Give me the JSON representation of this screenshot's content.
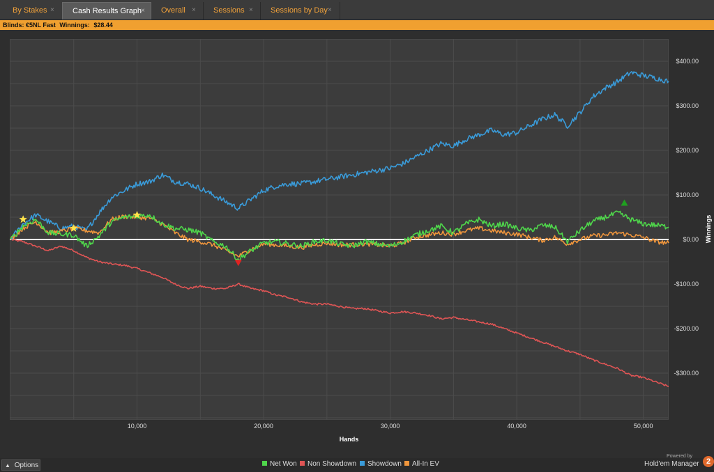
{
  "tabs": [
    {
      "label": "By Stakes",
      "active": false
    },
    {
      "label": "Cash Results Graph",
      "active": true
    },
    {
      "label": "Overall",
      "active": false
    },
    {
      "label": "Sessions",
      "active": false
    },
    {
      "label": "Sessions by Day",
      "active": false
    }
  ],
  "close_glyph": "×",
  "infobar": {
    "blinds": "Blinds: €5NL Fast",
    "winnings_label": "Winnings:",
    "winnings_value": "$28.44"
  },
  "options_label": "Options",
  "branding": {
    "powered_by": "Powered by",
    "product": "Hold'em Manager",
    "logo_text": "2"
  },
  "colors": {
    "accent": "#f0a030",
    "net_won": "#4fd64b",
    "non_showdown": "#e05555",
    "showdown": "#3a9bd9",
    "all_in_ev": "#f0963c",
    "zero_line": "#ffffff"
  },
  "chart_data": {
    "type": "line",
    "xlabel": "Hands",
    "ylabel": "Winnings",
    "xlim": [
      0,
      52000
    ],
    "ylim": [
      -400,
      450
    ],
    "x_ticks": [
      10000,
      20000,
      30000,
      40000,
      50000
    ],
    "x_tick_labels": [
      "10,000",
      "20,000",
      "30,000",
      "40,000",
      "50,000"
    ],
    "y_ticks": [
      400,
      300,
      200,
      100,
      0,
      -100,
      -200,
      -300
    ],
    "y_tick_labels": [
      "$400.00",
      "$300.00",
      "$200.00",
      "$100.00",
      "$0.00",
      "-$100.00",
      "-$200.00",
      "-$300.00"
    ],
    "grid": true,
    "legend_position": "bottom",
    "x": [
      0,
      1000,
      2000,
      3000,
      4000,
      5000,
      6000,
      7000,
      8000,
      9000,
      10000,
      11000,
      12000,
      13000,
      14000,
      15000,
      16000,
      17000,
      18000,
      19000,
      20000,
      21000,
      22000,
      23000,
      24000,
      25000,
      26000,
      27000,
      28000,
      29000,
      30000,
      31000,
      32000,
      33000,
      34000,
      35000,
      36000,
      37000,
      38000,
      39000,
      40000,
      41000,
      42000,
      43000,
      44000,
      45000,
      46000,
      47000,
      48000,
      49000,
      50000,
      51000,
      52000
    ],
    "series": [
      {
        "name": "Net Won",
        "color": "#4fd64b",
        "values": [
          0,
          30,
          45,
          15,
          12,
          10,
          -15,
          8,
          40,
          50,
          52,
          55,
          35,
          25,
          22,
          15,
          -5,
          -15,
          -45,
          -25,
          -8,
          -5,
          -10,
          -15,
          -5,
          -2,
          -10,
          -15,
          -5,
          -10,
          -15,
          -5,
          10,
          20,
          30,
          15,
          35,
          45,
          30,
          35,
          25,
          20,
          32,
          28,
          -5,
          20,
          40,
          50,
          60,
          45,
          35,
          32,
          28
        ]
      },
      {
        "name": "Non Showdown",
        "color": "#e05555",
        "values": [
          0,
          -5,
          -15,
          -25,
          -15,
          -25,
          -40,
          -50,
          -55,
          -58,
          -65,
          -75,
          -85,
          -100,
          -110,
          -105,
          -110,
          -110,
          -100,
          -110,
          -115,
          -125,
          -130,
          -140,
          -145,
          -145,
          -150,
          -155,
          -155,
          -160,
          -165,
          -162,
          -165,
          -170,
          -178,
          -175,
          -180,
          -185,
          -190,
          -200,
          -210,
          -220,
          -230,
          -240,
          -250,
          -258,
          -270,
          -280,
          -290,
          -305,
          -310,
          -320,
          -330
        ]
      },
      {
        "name": "Showdown",
        "color": "#3a9bd9",
        "values": [
          0,
          35,
          55,
          40,
          25,
          30,
          20,
          60,
          95,
          110,
          125,
          130,
          145,
          130,
          125,
          115,
          100,
          85,
          70,
          90,
          110,
          120,
          125,
          125,
          130,
          135,
          140,
          145,
          150,
          155,
          160,
          170,
          185,
          200,
          215,
          210,
          225,
          235,
          245,
          235,
          240,
          255,
          270,
          280,
          255,
          285,
          320,
          340,
          355,
          375,
          368,
          362,
          355
        ]
      },
      {
        "name": "All-In EV",
        "color": "#f0963c",
        "values": [
          0,
          25,
          40,
          15,
          18,
          25,
          20,
          15,
          45,
          52,
          50,
          48,
          35,
          15,
          0,
          -5,
          -12,
          -25,
          -38,
          -22,
          -10,
          -12,
          -15,
          -18,
          -12,
          -8,
          -12,
          -12,
          -10,
          -12,
          -15,
          -8,
          5,
          10,
          15,
          12,
          20,
          25,
          20,
          15,
          12,
          5,
          -2,
          5,
          -10,
          0,
          8,
          10,
          15,
          10,
          5,
          -5,
          -8
        ]
      }
    ],
    "markers": [
      {
        "type": "star",
        "color": "#ffe44a",
        "x": 1000,
        "y": 45
      },
      {
        "type": "star",
        "color": "#ffe44a",
        "x": 5000,
        "y": 25
      },
      {
        "type": "star",
        "color": "#ffe44a",
        "x": 10000,
        "y": 55
      },
      {
        "type": "triangle-down",
        "color": "#e02222",
        "x": 18000,
        "y": -52
      },
      {
        "type": "triangle-up",
        "color": "#1fa01f",
        "x": 48500,
        "y": 82
      }
    ]
  }
}
